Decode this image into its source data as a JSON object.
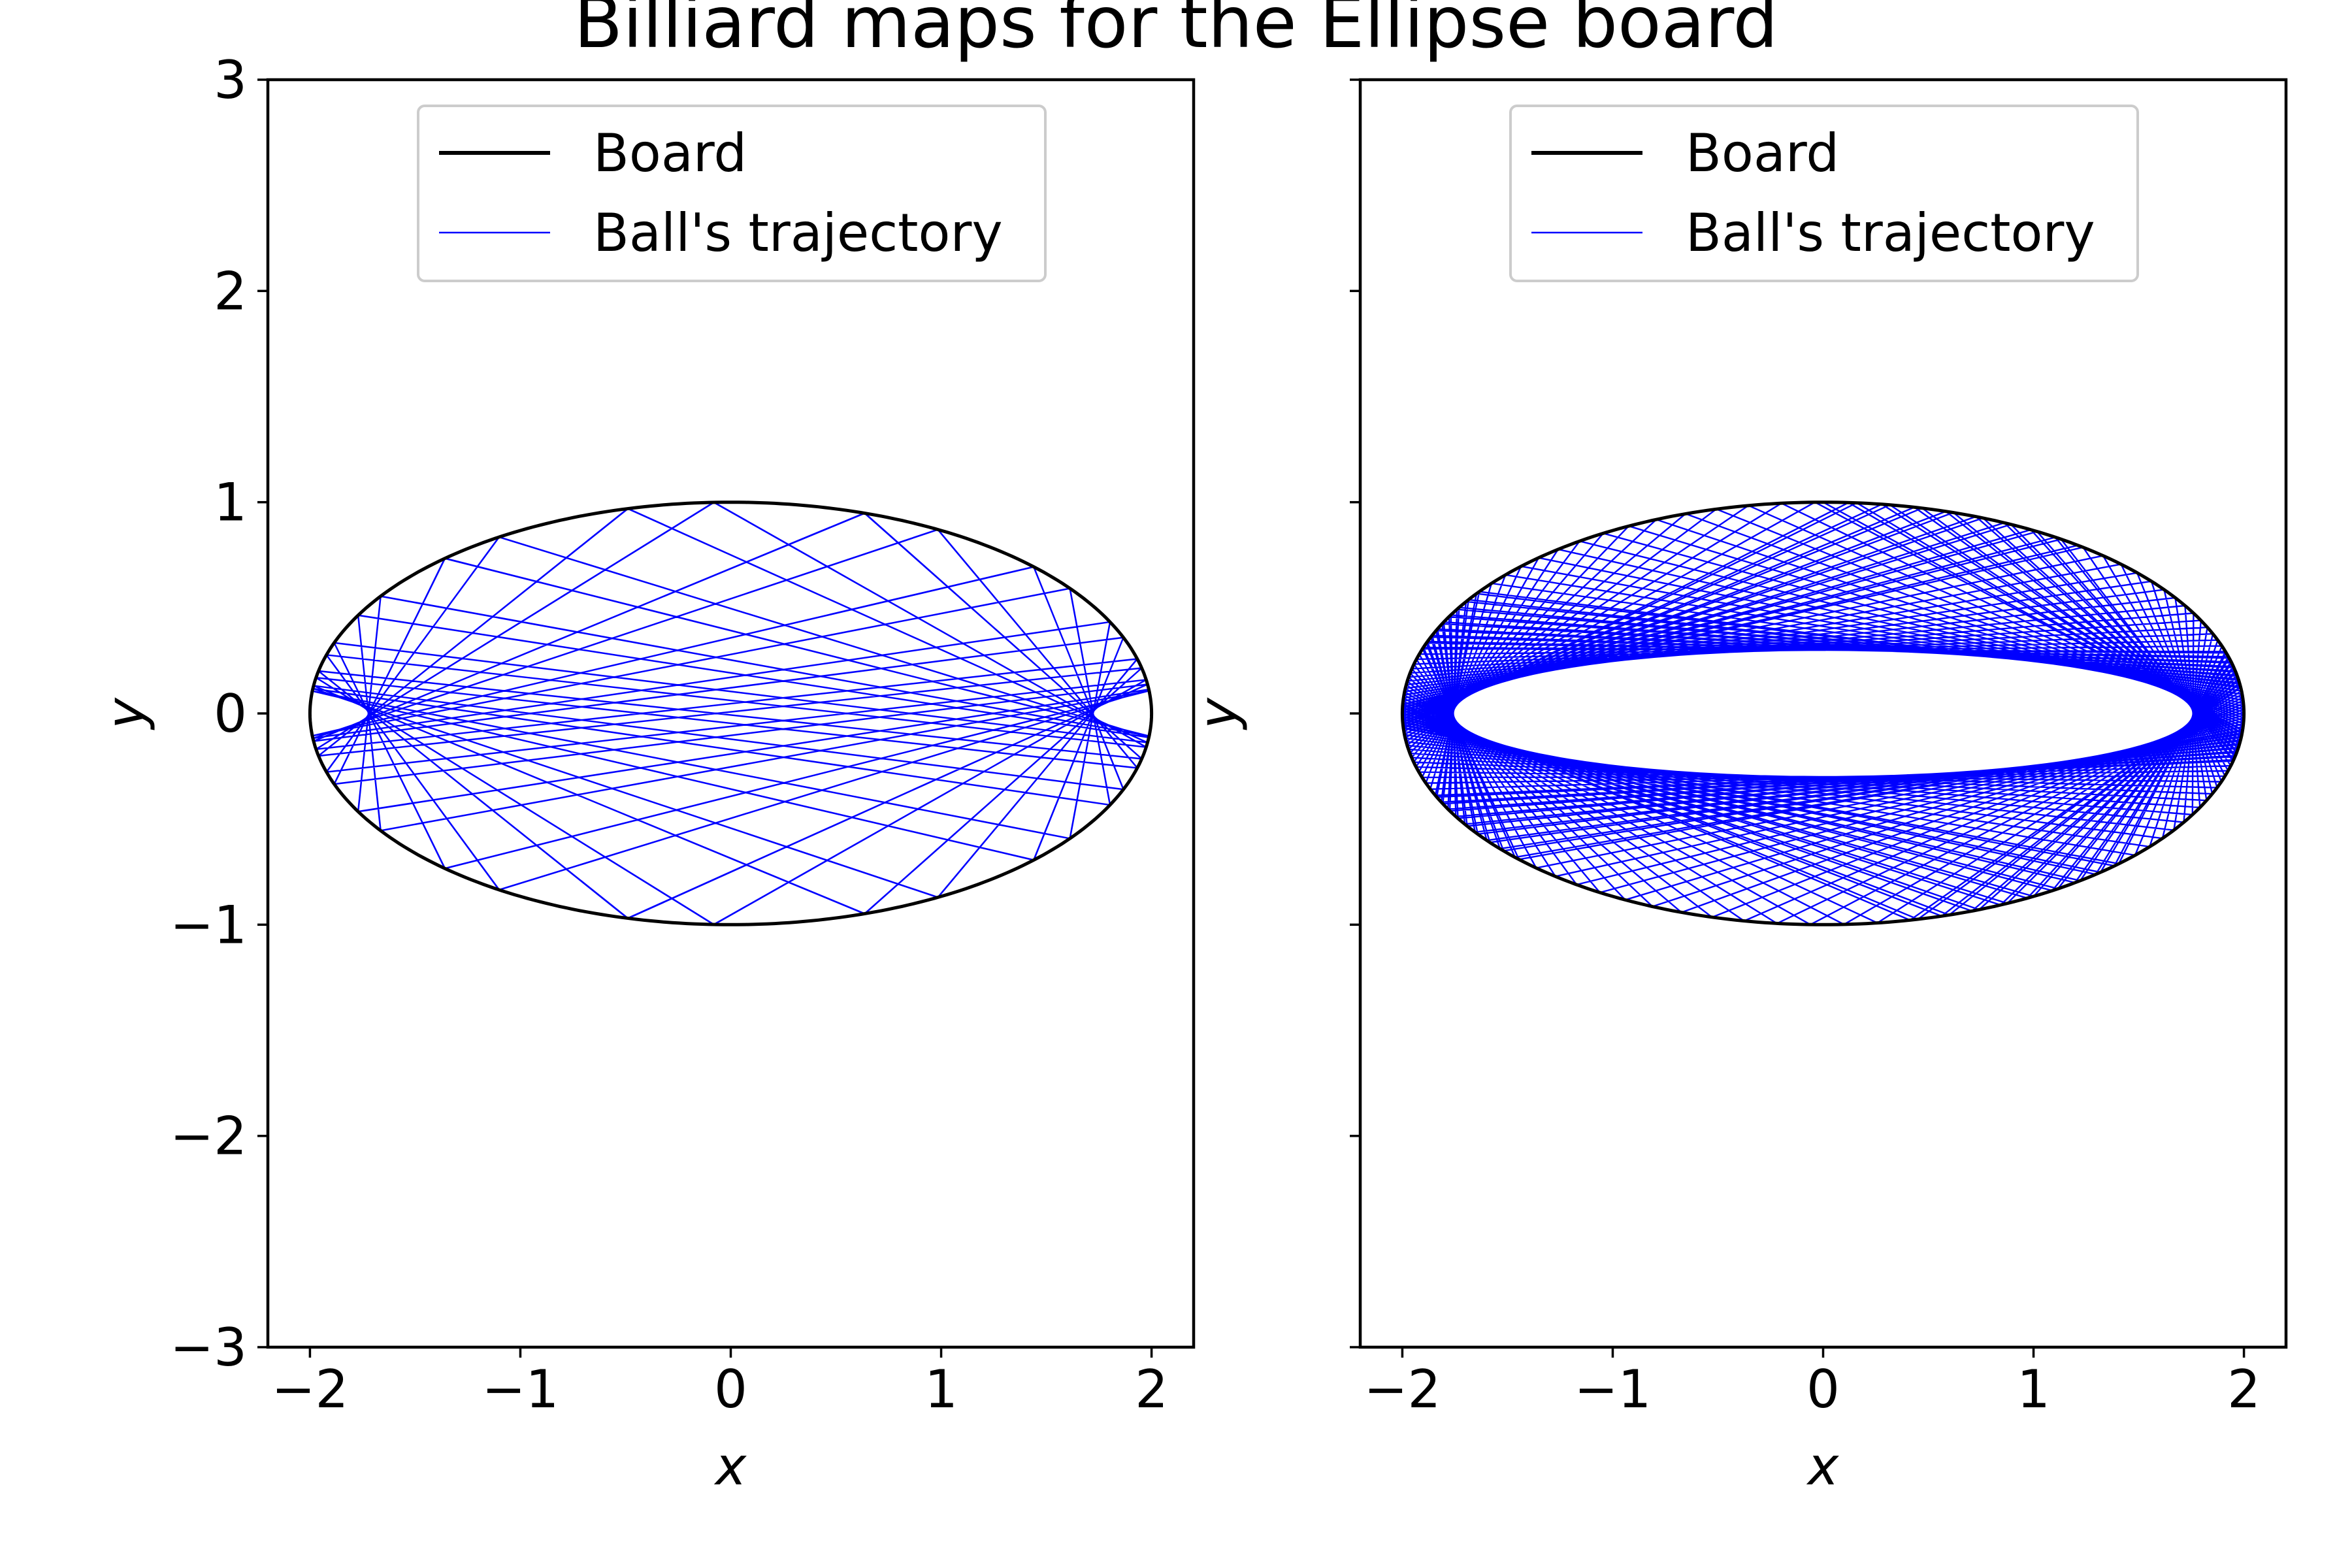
{
  "figure": {
    "title": "Billiard maps for the Ellipse board"
  },
  "chart_data": [
    {
      "type": "line",
      "xlabel": "x",
      "ylabel": "y",
      "xlim": [
        -2.2,
        2.2
      ],
      "ylim": [
        -3,
        3
      ],
      "xticks": [
        "−2",
        "−1",
        "0",
        "1",
        "2"
      ],
      "yticks": [
        "−3",
        "−2",
        "−1",
        "0",
        "1",
        "2",
        "3"
      ],
      "show_yticklabels": true,
      "grid": false,
      "legend_position": "upper center",
      "board": {
        "a": 2,
        "b": 1
      },
      "series": [
        {
          "name": "Board",
          "color": "#000000",
          "kind": "ellipse",
          "a": 2,
          "b": 1
        },
        {
          "name": "Ball's trajectory",
          "color": "#0000ff",
          "kind": "billiard",
          "caustic": "hyperbola",
          "start_x": 1.87,
          "start_y": 0.36,
          "bounces": 160
        }
      ]
    },
    {
      "type": "line",
      "xlabel": "x",
      "ylabel": "y",
      "xlim": [
        -2.2,
        2.2
      ],
      "ylim": [
        -3,
        3
      ],
      "xticks": [
        "−2",
        "−1",
        "0",
        "1",
        "2"
      ],
      "yticks": [
        "−3",
        "−2",
        "−1",
        "0",
        "1",
        "2",
        "3"
      ],
      "show_yticklabels": false,
      "grid": false,
      "legend_position": "upper center",
      "board": {
        "a": 2,
        "b": 1
      },
      "series": [
        {
          "name": "Board",
          "color": "#000000",
          "kind": "ellipse",
          "a": 2,
          "b": 1
        },
        {
          "name": "Ball's trajectory",
          "color": "#0000ff",
          "kind": "billiard",
          "caustic": "ellipse",
          "caustic_a": 1.75,
          "caustic_b": 0.31,
          "bounces": 220
        }
      ]
    }
  ]
}
